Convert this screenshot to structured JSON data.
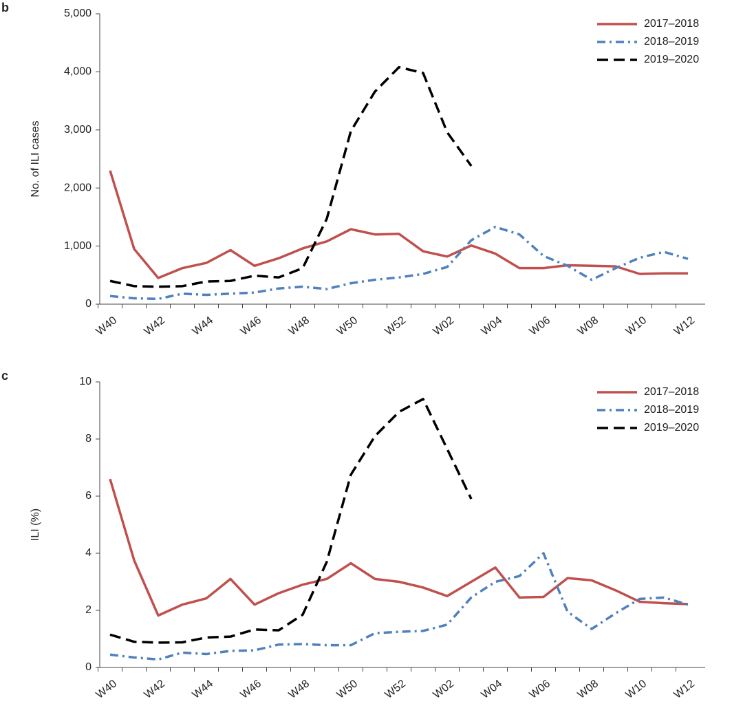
{
  "chart_data": [
    {
      "type": "line",
      "panel_label": "b",
      "ylabel": "No. of ILI cases",
      "categories": [
        "W40",
        null,
        "W42",
        null,
        "W44",
        null,
        "W46",
        null,
        "W48",
        null,
        "W50",
        null,
        "W52",
        null,
        "W02",
        null,
        "W04",
        null,
        "W06",
        null,
        "W08",
        null,
        "W10",
        null,
        "W12"
      ],
      "ylim": [
        0,
        5000
      ],
      "yticks": [
        0,
        {
          "value": 1000,
          "label": "1,000"
        },
        {
          "value": 2000,
          "label": "2,000"
        },
        {
          "value": 3000,
          "label": "3,000"
        },
        {
          "value": 4000,
          "label": "4,000"
        },
        {
          "value": 5000,
          "label": "5,000"
        }
      ],
      "legend": "top-right",
      "series": [
        {
          "name": "2017–2018",
          "color": "#c0504d",
          "dash": "solid",
          "values": [
            2300,
            950,
            450,
            620,
            710,
            930,
            660,
            790,
            960,
            1080,
            1290,
            1200,
            1210,
            910,
            820,
            1010,
            870,
            620,
            620,
            670,
            660,
            650,
            520,
            530,
            530
          ]
        },
        {
          "name": "2018–2019",
          "color": "#4f81bd",
          "dash": "dashdot",
          "values": [
            140,
            100,
            90,
            180,
            160,
            180,
            200,
            270,
            300,
            260,
            360,
            420,
            460,
            520,
            640,
            1100,
            1330,
            1200,
            830,
            660,
            420,
            620,
            800,
            900,
            780
          ]
        },
        {
          "name": "2019–2020",
          "color": "#000000",
          "dash": "dash",
          "values": [
            400,
            310,
            300,
            310,
            390,
            400,
            490,
            460,
            620,
            1470,
            2980,
            3660,
            4080,
            3980,
            2960,
            2380,
            null,
            null,
            null,
            null,
            null,
            null,
            null,
            null,
            null
          ]
        }
      ]
    },
    {
      "type": "line",
      "panel_label": "c",
      "ylabel": "ILI (%)",
      "categories": [
        "W40",
        null,
        "W42",
        null,
        "W44",
        null,
        "W46",
        null,
        "W48",
        null,
        "W50",
        null,
        "W52",
        null,
        "W02",
        null,
        "W04",
        null,
        "W06",
        null,
        "W08",
        null,
        "W10",
        null,
        "W12"
      ],
      "ylim": [
        0,
        10
      ],
      "yticks": [
        0,
        2,
        4,
        6,
        8,
        10
      ],
      "legend": "top-right",
      "series": [
        {
          "name": "2017–2018",
          "color": "#c0504d",
          "dash": "solid",
          "values": [
            6.6,
            3.75,
            1.82,
            2.2,
            2.42,
            3.1,
            2.2,
            2.6,
            2.9,
            3.1,
            3.65,
            3.1,
            3.0,
            2.8,
            2.5,
            3.0,
            3.5,
            2.45,
            2.47,
            3.13,
            3.05,
            2.7,
            2.3,
            2.25,
            2.22
          ]
        },
        {
          "name": "2018–2019",
          "color": "#4f81bd",
          "dash": "dashdot",
          "values": [
            0.45,
            0.35,
            0.28,
            0.52,
            0.47,
            0.58,
            0.6,
            0.8,
            0.82,
            0.78,
            0.78,
            1.2,
            1.25,
            1.28,
            1.5,
            2.45,
            3.0,
            3.2,
            4.0,
            1.95,
            1.35,
            1.9,
            2.4,
            2.45,
            2.2
          ]
        },
        {
          "name": "2019–2020",
          "color": "#000000",
          "dash": "dash",
          "values": [
            1.15,
            0.9,
            0.87,
            0.88,
            1.05,
            1.08,
            1.33,
            1.3,
            1.85,
            3.7,
            6.75,
            8.1,
            8.95,
            9.4,
            7.65,
            5.9,
            null,
            null,
            null,
            null,
            null,
            null,
            null,
            null,
            null
          ]
        }
      ]
    }
  ]
}
